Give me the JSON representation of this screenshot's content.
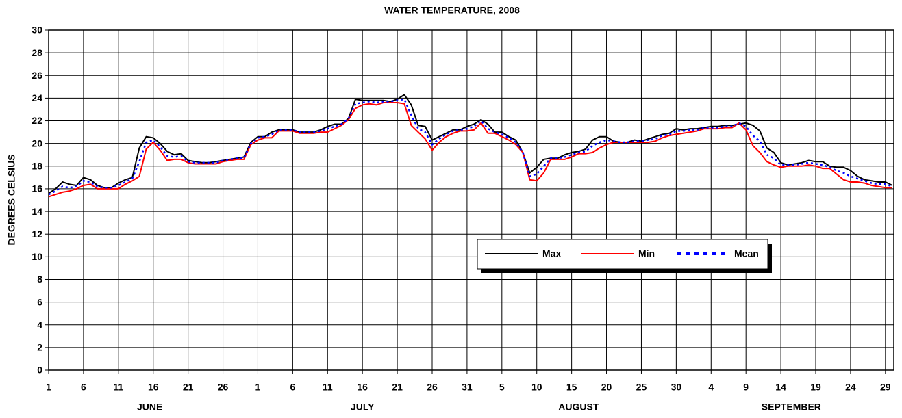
{
  "chart_data": {
    "type": "line",
    "title": "WATER TEMPERATURE,  2008",
    "y_label": "DEGREES CELSIUS",
    "categories": [
      "1",
      null,
      null,
      null,
      null,
      "6",
      null,
      null,
      null,
      null,
      "11",
      null,
      null,
      null,
      null,
      "16",
      null,
      null,
      null,
      null,
      "21",
      null,
      null,
      null,
      null,
      "26",
      null,
      null,
      null,
      null,
      "1",
      null,
      null,
      null,
      null,
      "6",
      null,
      null,
      null,
      null,
      "11",
      null,
      null,
      null,
      null,
      "16",
      null,
      null,
      null,
      null,
      "21",
      null,
      null,
      null,
      null,
      "26",
      null,
      null,
      null,
      null,
      "31",
      null,
      null,
      null,
      null,
      "5",
      null,
      null,
      null,
      null,
      "10",
      null,
      null,
      null,
      null,
      "15",
      null,
      null,
      null,
      null,
      "20",
      null,
      null,
      null,
      null,
      "25",
      null,
      null,
      null,
      null,
      "30",
      null,
      null,
      null,
      null,
      "4",
      null,
      null,
      null,
      null,
      "9",
      null,
      null,
      null,
      null,
      "14",
      null,
      null,
      null,
      null,
      "19",
      null,
      null,
      null,
      null,
      "24",
      null,
      null,
      null,
      null,
      "29",
      null
    ],
    "months": [
      "JUNE",
      "JULY",
      "AUGUST",
      "SEPTEMBER"
    ],
    "series": [
      {
        "name": "Max",
        "color": "#000000",
        "line_style": "solid",
        "values": [
          15.6,
          16.0,
          16.6,
          16.4,
          16.3,
          17.0,
          16.8,
          16.3,
          16.1,
          16.1,
          16.5,
          16.8,
          17.0,
          19.6,
          20.6,
          20.5,
          20.0,
          19.3,
          19.0,
          19.1,
          18.5,
          18.4,
          18.3,
          18.3,
          18.4,
          18.5,
          18.6,
          18.7,
          18.8,
          20.1,
          20.6,
          20.6,
          21.0,
          21.2,
          21.2,
          21.2,
          21.0,
          21.0,
          21.0,
          21.2,
          21.5,
          21.7,
          21.7,
          22.2,
          23.9,
          23.8,
          23.8,
          23.8,
          23.8,
          23.7,
          23.9,
          24.3,
          23.4,
          21.6,
          21.5,
          20.3,
          20.6,
          20.9,
          21.2,
          21.2,
          21.5,
          21.7,
          22.1,
          21.7,
          21.0,
          21.0,
          20.6,
          20.3,
          19.2,
          17.4,
          17.9,
          18.6,
          18.7,
          18.7,
          19.0,
          19.2,
          19.3,
          19.5,
          20.3,
          20.6,
          20.6,
          20.2,
          20.1,
          20.1,
          20.3,
          20.2,
          20.4,
          20.6,
          20.8,
          20.9,
          21.3,
          21.2,
          21.3,
          21.3,
          21.4,
          21.5,
          21.5,
          21.6,
          21.6,
          21.7,
          21.8,
          21.6,
          21.1,
          19.6,
          19.2,
          18.3,
          18.1,
          18.2,
          18.3,
          18.5,
          18.4,
          18.4,
          18.0,
          17.9,
          17.9,
          17.6,
          17.1,
          16.8,
          16.7,
          16.6,
          16.6,
          16.3
        ]
      },
      {
        "name": "Min",
        "color": "#ff0000",
        "line_style": "solid",
        "values": [
          15.3,
          15.5,
          15.7,
          15.8,
          16.0,
          16.3,
          16.4,
          16.0,
          16.0,
          16.0,
          16.0,
          16.4,
          16.7,
          17.1,
          19.5,
          20.1,
          19.4,
          18.5,
          18.6,
          18.6,
          18.3,
          18.2,
          18.2,
          18.2,
          18.2,
          18.4,
          18.5,
          18.6,
          18.6,
          19.9,
          20.3,
          20.5,
          20.5,
          21.1,
          21.1,
          21.1,
          20.9,
          20.9,
          20.9,
          21.0,
          21.0,
          21.3,
          21.6,
          22.1,
          23.1,
          23.4,
          23.5,
          23.4,
          23.6,
          23.6,
          23.6,
          23.5,
          21.6,
          21.0,
          20.4,
          19.4,
          20.1,
          20.6,
          20.9,
          21.1,
          21.1,
          21.2,
          21.8,
          20.9,
          20.9,
          20.6,
          20.3,
          19.9,
          19.2,
          16.8,
          16.7,
          17.4,
          18.6,
          18.6,
          18.6,
          18.8,
          19.1,
          19.1,
          19.2,
          19.6,
          19.9,
          20.1,
          20.1,
          20.1,
          20.1,
          20.1,
          20.1,
          20.2,
          20.5,
          20.7,
          20.8,
          20.9,
          21.0,
          21.1,
          21.3,
          21.3,
          21.3,
          21.4,
          21.4,
          21.8,
          21.2,
          19.8,
          19.2,
          18.4,
          18.1,
          17.9,
          18.0,
          18.0,
          18.0,
          18.1,
          18.0,
          17.8,
          17.8,
          17.3,
          16.8,
          16.6,
          16.6,
          16.5,
          16.3,
          16.2,
          16.1,
          16.1
        ]
      },
      {
        "name": "Mean",
        "color": "#0000ff",
        "line_style": "dotted",
        "values": [
          15.5,
          15.8,
          16.2,
          16.1,
          16.2,
          16.7,
          16.6,
          16.2,
          16.1,
          16.1,
          16.3,
          16.6,
          16.9,
          18.4,
          20.1,
          20.3,
          19.7,
          18.9,
          18.8,
          18.9,
          18.4,
          18.3,
          18.3,
          18.3,
          18.3,
          18.5,
          18.6,
          18.7,
          18.7,
          20.0,
          20.5,
          20.6,
          20.8,
          21.2,
          21.2,
          21.2,
          21.0,
          21.0,
          21.0,
          21.1,
          21.3,
          21.5,
          21.7,
          22.2,
          23.5,
          23.6,
          23.7,
          23.6,
          23.7,
          23.7,
          23.8,
          23.9,
          22.5,
          21.3,
          21.0,
          19.9,
          20.4,
          20.8,
          21.1,
          21.2,
          21.3,
          21.5,
          22.0,
          21.3,
          21.0,
          20.8,
          20.5,
          20.1,
          19.2,
          17.1,
          17.3,
          18.0,
          18.7,
          18.7,
          18.8,
          19.0,
          19.2,
          19.3,
          19.8,
          20.1,
          20.3,
          20.2,
          20.1,
          20.1,
          20.2,
          20.2,
          20.3,
          20.4,
          20.7,
          20.8,
          21.1,
          21.1,
          21.2,
          21.2,
          21.4,
          21.4,
          21.4,
          21.5,
          21.5,
          21.8,
          21.5,
          20.7,
          20.2,
          19.0,
          18.7,
          18.1,
          18.1,
          18.1,
          18.2,
          18.3,
          18.2,
          18.1,
          17.9,
          17.6,
          17.4,
          17.1,
          16.9,
          16.7,
          16.5,
          16.4,
          16.4,
          16.2
        ]
      }
    ],
    "ylim": [
      0,
      30
    ],
    "yticks": [
      0,
      2,
      4,
      6,
      8,
      10,
      12,
      14,
      16,
      18,
      20,
      22,
      24,
      26,
      28,
      30
    ],
    "grid": true
  }
}
